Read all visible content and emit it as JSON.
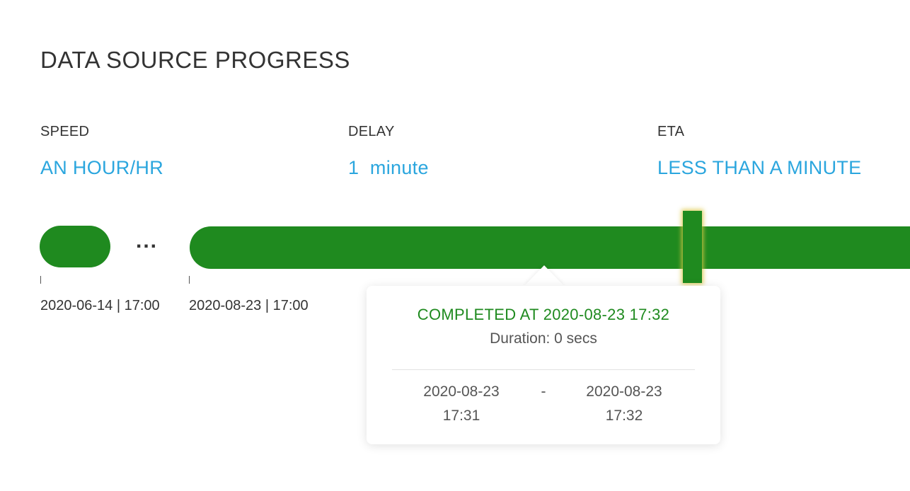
{
  "header": {
    "title": "DATA SOURCE PROGRESS"
  },
  "stats": {
    "speed": {
      "label": "SPEED",
      "value": "AN HOUR/HR"
    },
    "delay": {
      "label": "DELAY",
      "value": "1  minute"
    },
    "eta": {
      "label": "ETA",
      "value": "LESS THAN A MINUTE"
    }
  },
  "timeline": {
    "ellipsis": "...",
    "tick_labels": [
      "2020-06-14 | 17:00",
      "2020-08-23 | 17:00"
    ],
    "segment_color": "#1f8a1f",
    "marker_glow_color": "#dcc846"
  },
  "tooltip": {
    "status": "COMPLETED AT 2020-08-23 17:32",
    "duration": "Duration: 0 secs",
    "range_start_date": "2020-08-23",
    "range_start_time": "17:31",
    "range_separator": "-",
    "range_end_date": "2020-08-23",
    "range_end_time": "17:32"
  },
  "colors": {
    "accent": "#2ba6de",
    "success": "#1f8a1f",
    "text": "#333333"
  }
}
